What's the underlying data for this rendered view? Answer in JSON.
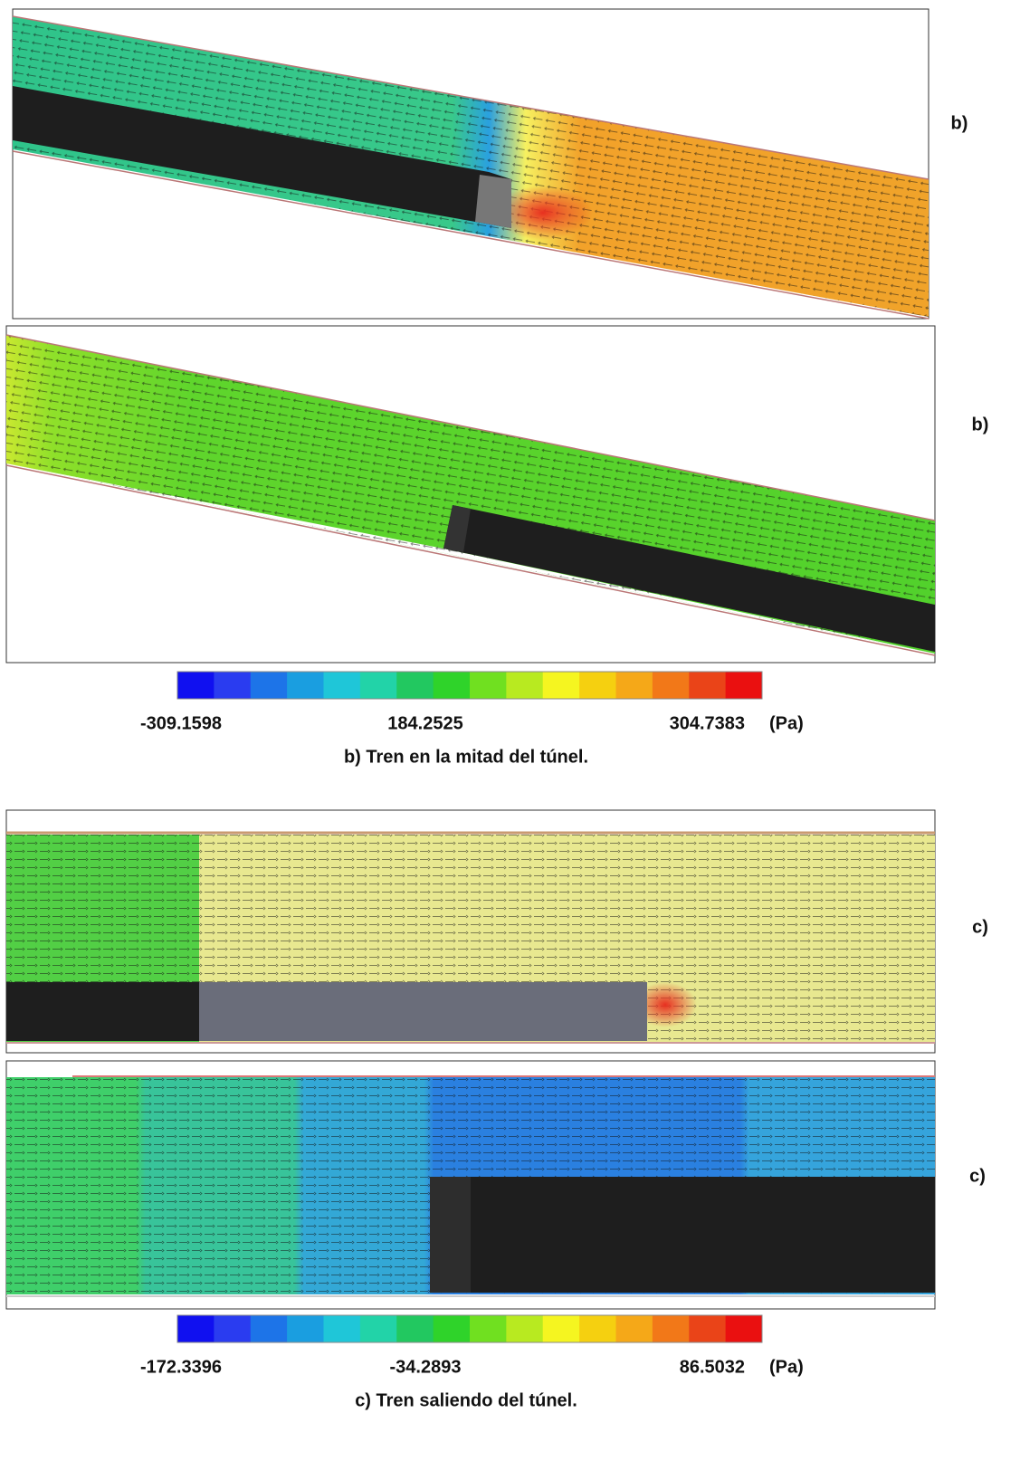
{
  "panels": [
    {
      "label": "b)"
    },
    {
      "label": "b)"
    },
    {
      "label": "c)"
    },
    {
      "label": "c)"
    }
  ],
  "colorbars": [
    {
      "min": "-309.1598",
      "mid": "184.2525",
      "max": "304.7383",
      "unit": "(Pa)",
      "caption": "b) Tren en la mitad del túnel."
    },
    {
      "min": "-172.3396",
      "mid": "-34.2893",
      "max": "86.5032",
      "unit": "(Pa)",
      "caption": "c) Tren saliendo del túnel."
    }
  ]
}
